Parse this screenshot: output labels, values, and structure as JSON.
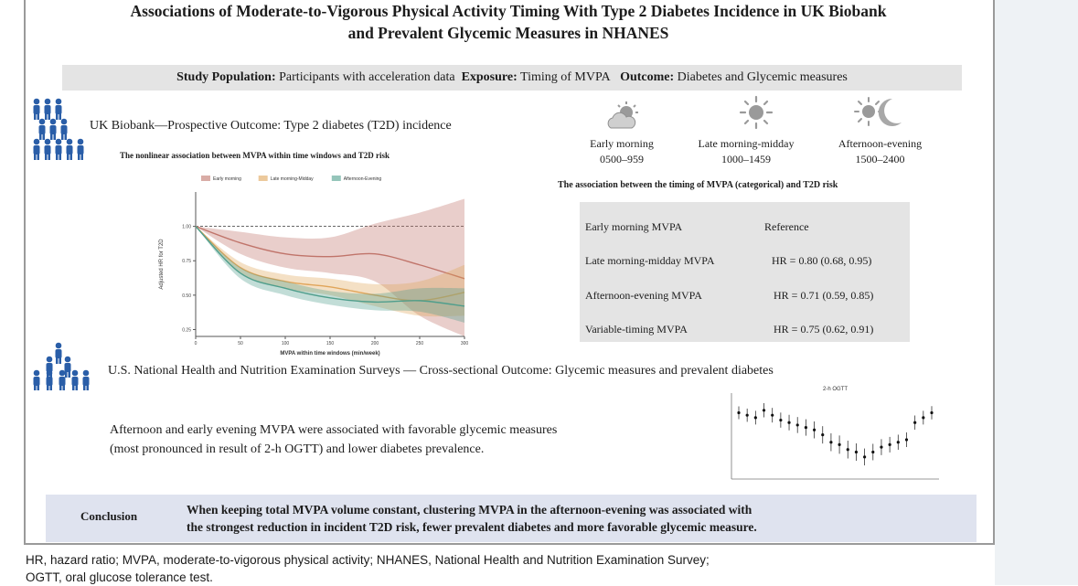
{
  "title": {
    "line1": "Associations of Moderate-to-Vigorous Physical Activity Timing With Type 2 Diabetes Incidence in UK Biobank",
    "line2": "and Prevalent Glycemic Measures in NHANES"
  },
  "study_bar": {
    "pop_label": "Study Population:",
    "pop_value": "Participants with acceleration data",
    "exp_label": "Exposure:",
    "exp_value": "Timing of MVPA",
    "out_label": "Outcome:",
    "out_value": "Diabetes and Glycemic measures"
  },
  "ukb": {
    "header": "UK Biobank—Prospective   Outcome: Type 2 diabetes (T2D) incidence",
    "chart_title": "The nonlinear association between MVPA within time windows and T2D risk",
    "table_title": "The association between the timing of MVPA (categorical) and T2D risk"
  },
  "time_windows": [
    {
      "name": "Early morning",
      "range": "0500–959",
      "icon": "cloud-sun-icon"
    },
    {
      "name": "Late morning-midday",
      "range": "1000–1459",
      "icon": "sun-icon"
    },
    {
      "name": "Afternoon-evening",
      "range": "1500–2400",
      "icon": "sun-moon-icon"
    }
  ],
  "hr_table": [
    {
      "label": "Early morning MVPA",
      "value": "Reference"
    },
    {
      "label": "Late morning-midday MVPA",
      "value": "HR = 0.80 (0.68, 0.95)"
    },
    {
      "label": "Afternoon-evening MVPA",
      "value": "HR = 0.71 (0.59, 0.85)"
    },
    {
      "label": "Variable-timing MVPA",
      "value": "HR = 0.75 (0.62, 0.91)"
    }
  ],
  "nhanes": {
    "header": "U.S. National Health and Nutrition Examination Surveys — Cross-sectional   Outcome: Glycemic measures and prevalent diabetes",
    "text_line1": "Afternoon and early evening MVPA were associated with favorable glycemic measures",
    "text_line2": "(most pronounced in result of 2-h OGTT) and lower diabetes prevalence."
  },
  "conclusion": {
    "label": "Conclusion",
    "line1": "When keeping total MVPA volume constant, clustering MVPA in the afternoon-evening was associated with",
    "line2": "the strongest reduction in incident T2D risk, fewer prevalent diabetes and more favorable glycemic measure."
  },
  "footnote": {
    "line1": "HR, hazard ratio; MVPA, moderate-to-vigorous physical activity; NHANES, National Health and Nutrition Examination Survey;",
    "line2": "OGTT, oral glucose tolerance test."
  },
  "chart_data": [
    {
      "type": "line",
      "title": "The nonlinear association between MVPA within time windows and T2D risk",
      "xlabel": "MVPA within time windows (min/week)",
      "ylabel": "Adjusted HR for T2D",
      "x": [
        0,
        50,
        100,
        150,
        200,
        250,
        300
      ],
      "xticks": [
        "0",
        "50",
        "100",
        "150",
        "200",
        "250",
        "300"
      ],
      "yticks": [
        "1.00",
        "0.75",
        "0.50",
        "0.25"
      ],
      "ylim": [
        0.2,
        1.25
      ],
      "reference_line": 1.0,
      "legend": "top",
      "series": [
        {
          "name": "Early morning",
          "color": "#c0746a",
          "values": [
            1.0,
            0.88,
            0.8,
            0.78,
            0.8,
            0.72,
            0.62
          ],
          "lower": [
            1.0,
            0.8,
            0.7,
            0.66,
            0.6,
            0.35,
            0.2
          ],
          "upper": [
            1.0,
            0.96,
            0.92,
            0.92,
            1.02,
            1.1,
            1.2
          ]
        },
        {
          "name": "Late morning-Midday",
          "color": "#e0a55a",
          "values": [
            1.0,
            0.7,
            0.6,
            0.56,
            0.5,
            0.46,
            0.52
          ],
          "lower": [
            1.0,
            0.66,
            0.55,
            0.5,
            0.42,
            0.35,
            0.35
          ],
          "upper": [
            1.0,
            0.74,
            0.65,
            0.62,
            0.58,
            0.6,
            0.72
          ]
        },
        {
          "name": "Afternoon-Evening",
          "color": "#4f9e8c",
          "values": [
            1.0,
            0.66,
            0.55,
            0.48,
            0.45,
            0.46,
            0.42
          ],
          "lower": [
            1.0,
            0.62,
            0.5,
            0.43,
            0.39,
            0.38,
            0.3
          ],
          "upper": [
            1.0,
            0.7,
            0.6,
            0.53,
            0.51,
            0.55,
            0.55
          ]
        }
      ]
    },
    {
      "type": "scatter",
      "title": "2-h OGTT",
      "points": 24,
      "values": [
        7.2,
        7.1,
        7.0,
        7.3,
        7.1,
        6.9,
        6.8,
        6.7,
        6.6,
        6.5,
        6.3,
        6.0,
        5.9,
        5.7,
        5.6,
        5.4,
        5.6,
        5.8,
        5.9,
        6.0,
        6.1,
        6.8,
        7.0,
        7.2
      ]
    }
  ]
}
